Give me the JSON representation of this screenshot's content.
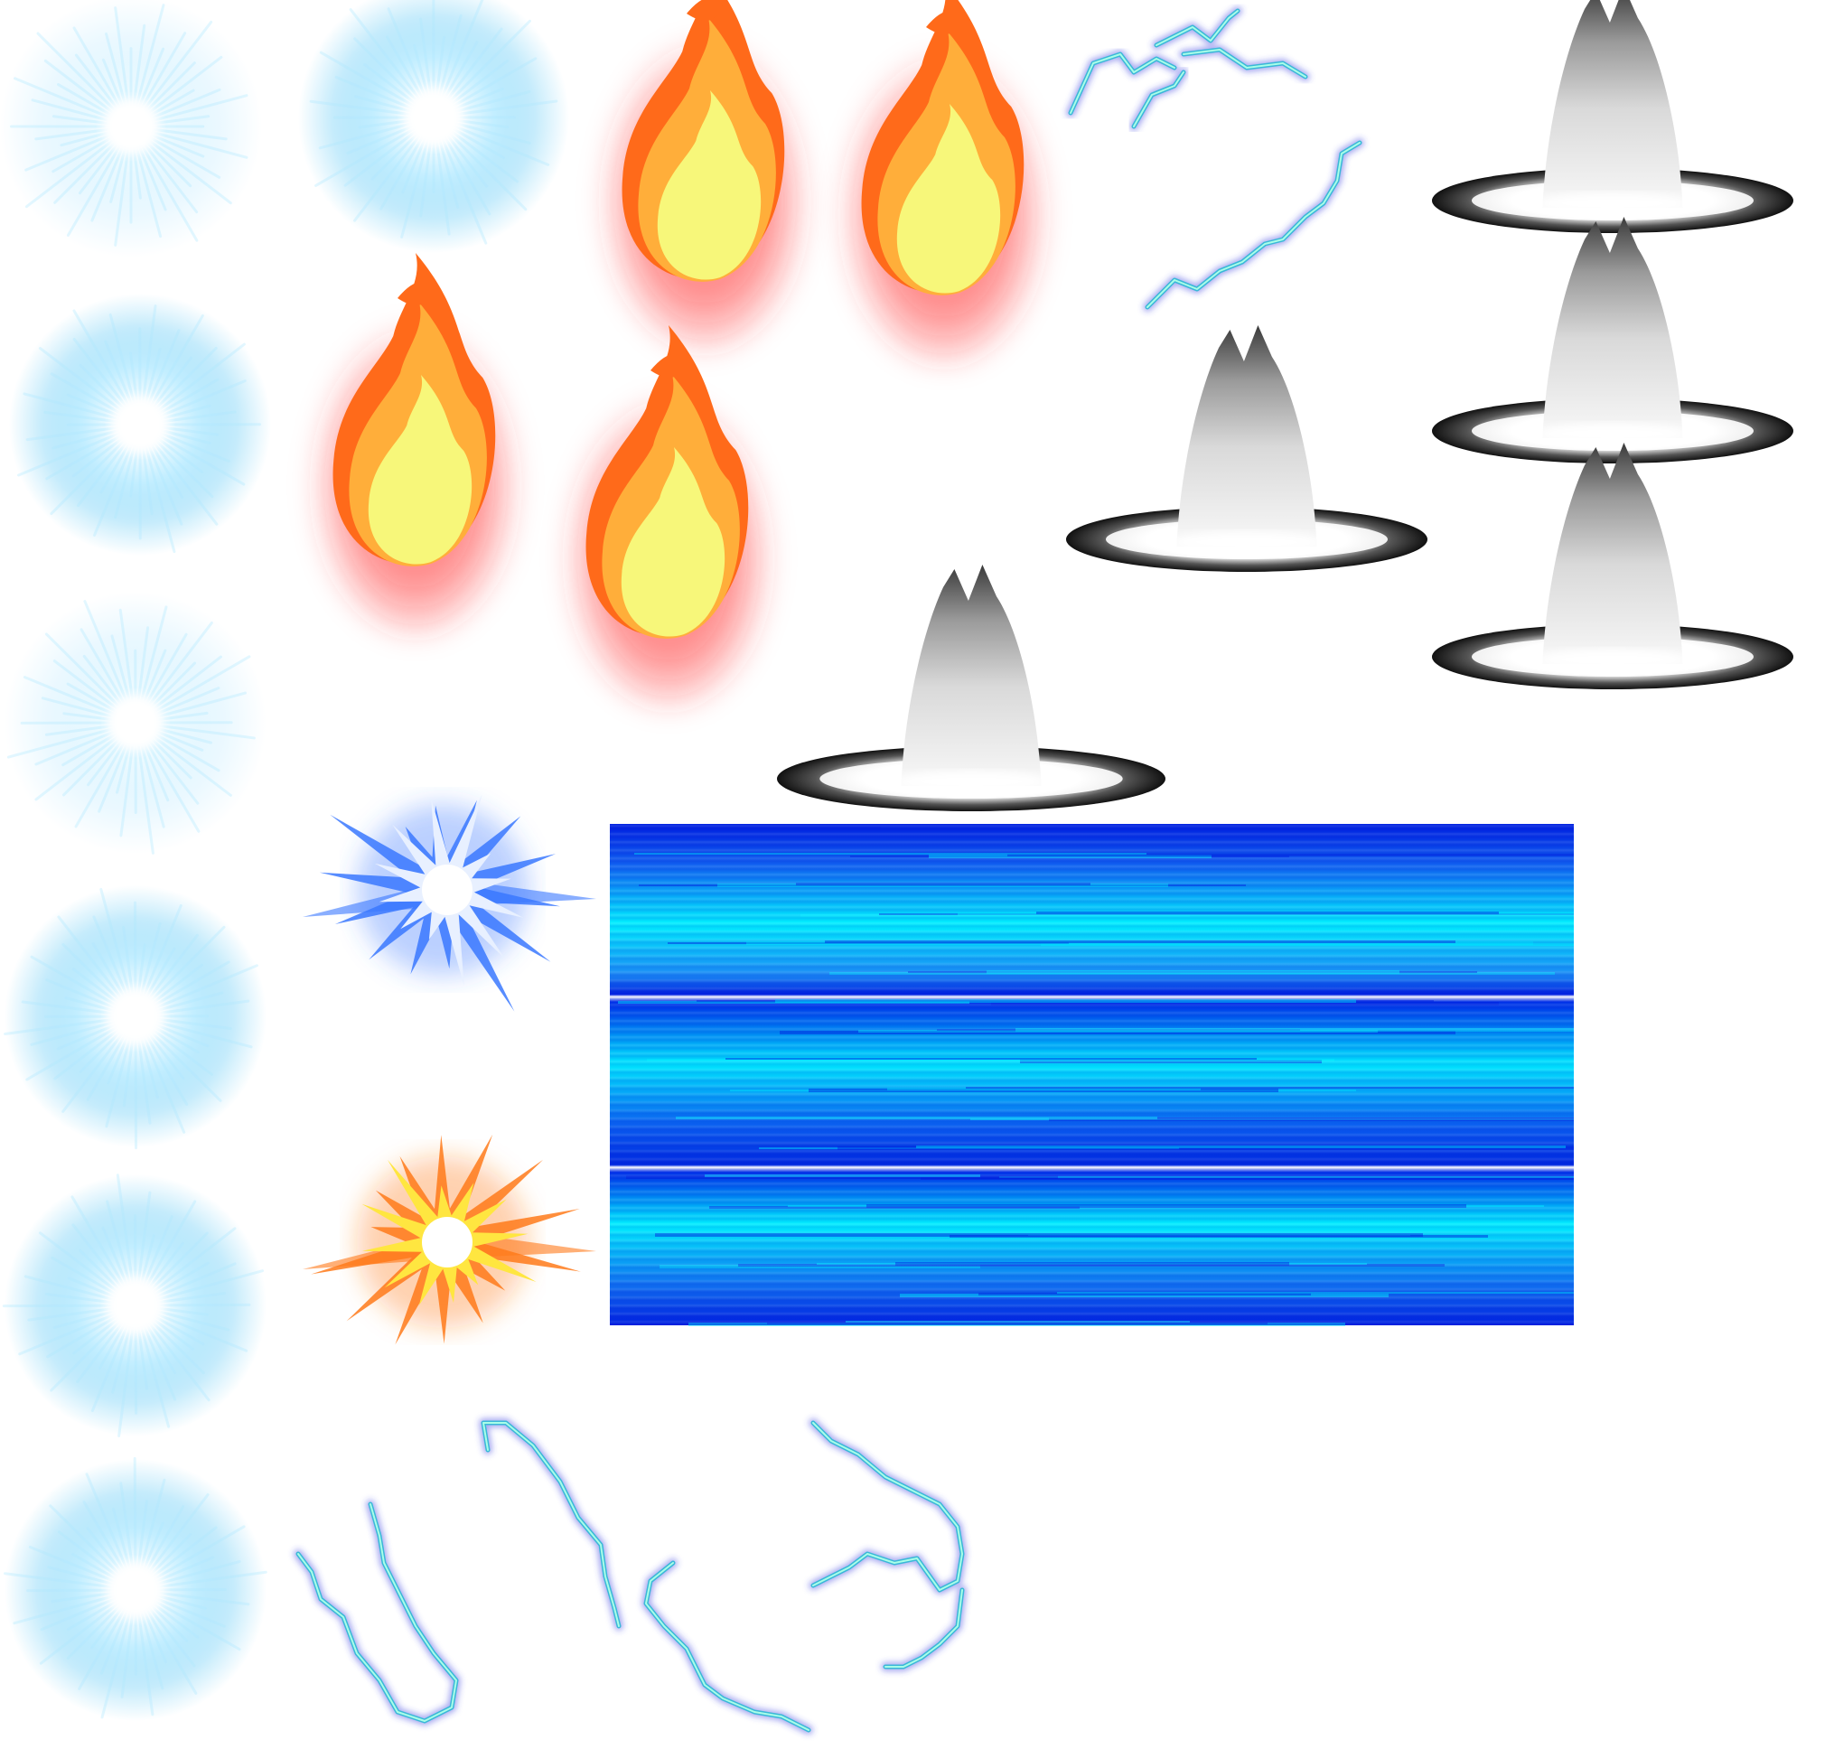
{
  "sprite_sheet": {
    "colors": {
      "background": "#ffffff",
      "glow_core": "#ffffff",
      "glow_mid": "#aee8ff",
      "glow_outer": "#5cc8f5",
      "fire_core": "#f7f77a",
      "fire_mid": "#ffae3a",
      "fire_outer": "#ff6a1a",
      "fire_halo": "#ff3030",
      "lightning_core": "#a8ffe8",
      "lightning_mid": "#3ab8d8",
      "lightning_outer": "#3a40e0",
      "smoke_light": "#f2f2f2",
      "smoke_dark": "#3a3a3a",
      "beam_cyan": "#00f0ff",
      "beam_blue": "#0020e0",
      "burst_blue": "#3a78ff",
      "burst_orange": "#ff7a1a",
      "burst_yellow": "#ffe640"
    },
    "glow_orbs": [
      {
        "icon": "glow-orb-icon"
      },
      {
        "icon": "glow-orb-icon"
      },
      {
        "icon": "glow-orb-icon"
      },
      {
        "icon": "glow-orb-icon"
      },
      {
        "icon": "glow-orb-icon"
      },
      {
        "icon": "glow-orb-icon"
      },
      {
        "icon": "glow-orb-icon"
      }
    ],
    "fire_sprites": [
      {
        "icon": "fire-icon"
      },
      {
        "icon": "fire-icon"
      },
      {
        "icon": "fire-icon"
      },
      {
        "icon": "fire-icon"
      }
    ],
    "smoke_geysers": [
      {
        "icon": "smoke-geyser-icon"
      },
      {
        "icon": "smoke-geyser-icon"
      },
      {
        "icon": "smoke-geyser-icon"
      },
      {
        "icon": "smoke-geyser-icon"
      },
      {
        "icon": "smoke-geyser-icon"
      }
    ],
    "lightning_bolts": [
      {
        "icon": "lightning-icon"
      },
      {
        "icon": "lightning-icon"
      },
      {
        "icon": "lightning-icon"
      },
      {
        "icon": "lightning-icon"
      },
      {
        "icon": "lightning-icon"
      },
      {
        "icon": "lightning-icon"
      },
      {
        "icon": "lightning-icon"
      },
      {
        "icon": "lightning-icon"
      }
    ],
    "bursts": [
      {
        "icon": "blue-burst-icon",
        "variant": "blue"
      },
      {
        "icon": "orange-burst-icon",
        "variant": "orange"
      }
    ],
    "beam": {
      "icon": "energy-beam-icon"
    }
  }
}
